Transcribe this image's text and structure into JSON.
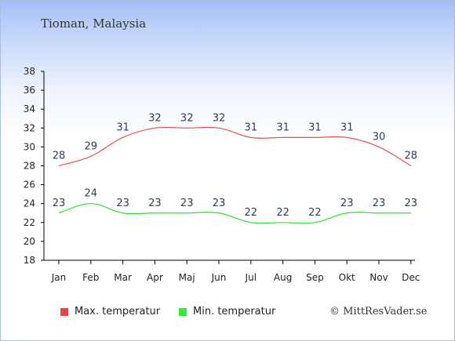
{
  "header": {
    "title": "Tioman, Malaysia"
  },
  "legend": {
    "max_label": "Max. temperatur",
    "min_label": "Min. temperatur"
  },
  "credit": "© MittResVader.se",
  "colors": {
    "max": "#e85050",
    "min": "#33dd33",
    "max_swatch": "#e84545",
    "min_swatch": "#33ee33"
  },
  "chart_data": {
    "type": "line",
    "categories": [
      "Jan",
      "Feb",
      "Mar",
      "Apr",
      "Maj",
      "Jun",
      "Jul",
      "Aug",
      "Sep",
      "Okt",
      "Nov",
      "Dec"
    ],
    "series": [
      {
        "name": "Max. temperatur",
        "values": [
          28,
          29,
          31,
          32,
          32,
          32,
          31,
          31,
          31,
          31,
          30,
          28
        ]
      },
      {
        "name": "Min. temperatur",
        "values": [
          23,
          24,
          23,
          23,
          23,
          23,
          22,
          22,
          22,
          23,
          23,
          23
        ]
      }
    ],
    "y_ticks": [
      18,
      20,
      22,
      24,
      26,
      28,
      30,
      32,
      34,
      36,
      38
    ],
    "ylim": [
      18,
      38
    ],
    "grid": false,
    "legend_position": "bottom"
  }
}
